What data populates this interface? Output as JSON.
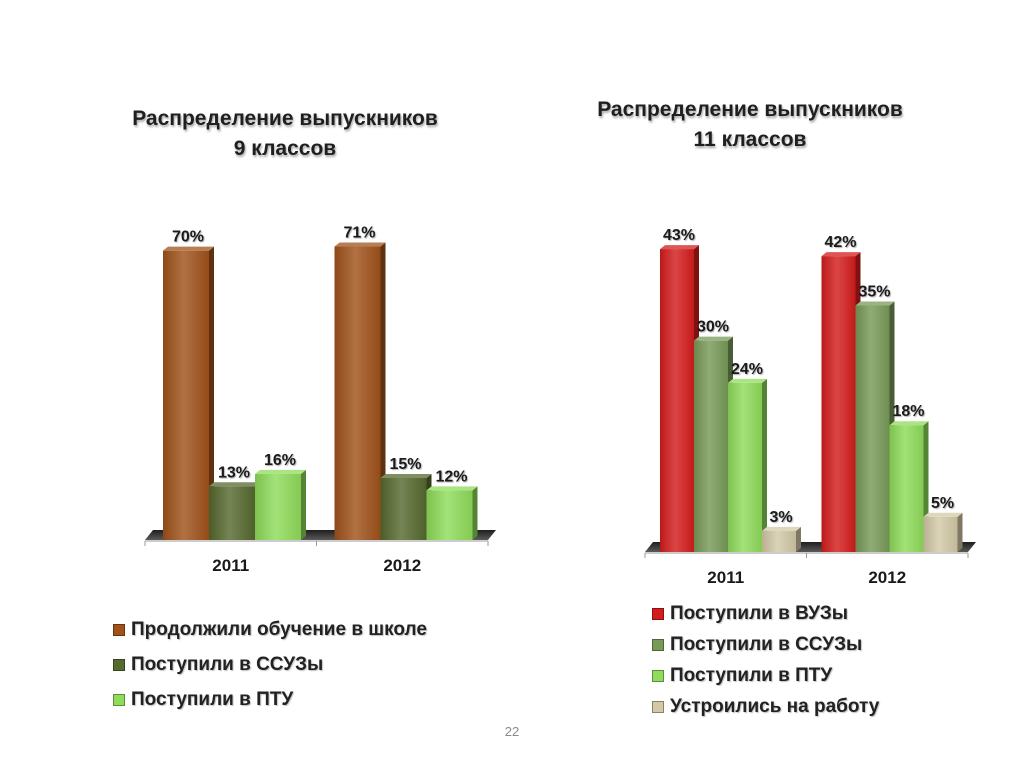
{
  "page_number": "22",
  "chart_data": [
    {
      "type": "bar",
      "title_lines": [
        "Распределение выпускников",
        "9 классов"
      ],
      "categories": [
        "2011",
        "2012"
      ],
      "ylim": [
        0,
        75
      ],
      "value_suffix": "%",
      "legend_position": "bottom",
      "grid": false,
      "series": [
        {
          "name": "Продолжили обучение в школе",
          "values": [
            70,
            71
          ],
          "color": "#a0521a"
        },
        {
          "name": "Поступили в ССУЗы",
          "values": [
            13,
            15
          ],
          "color": "#56692f"
        },
        {
          "name": "Поступили в ПТУ",
          "values": [
            16,
            12
          ],
          "color": "#8fdc5a"
        }
      ]
    },
    {
      "type": "bar",
      "title_lines": [
        "Распределение выпускников",
        "11 классов"
      ],
      "categories": [
        "2011",
        "2012"
      ],
      "ylim": [
        0,
        45
      ],
      "value_suffix": "%",
      "legend_position": "bottom",
      "grid": false,
      "series": [
        {
          "name": "Поступили в ВУЗы",
          "values": [
            43,
            42
          ],
          "color": "#d41c1c"
        },
        {
          "name": "Поступили в ССУЗы",
          "values": [
            30,
            35
          ],
          "color": "#789a58"
        },
        {
          "name": "Поступили в ПТУ",
          "values": [
            24,
            18
          ],
          "color": "#8fdc5a"
        },
        {
          "name": "Устроились на работу",
          "values": [
            3,
            5
          ],
          "color": "#d3c9a7"
        }
      ]
    }
  ]
}
